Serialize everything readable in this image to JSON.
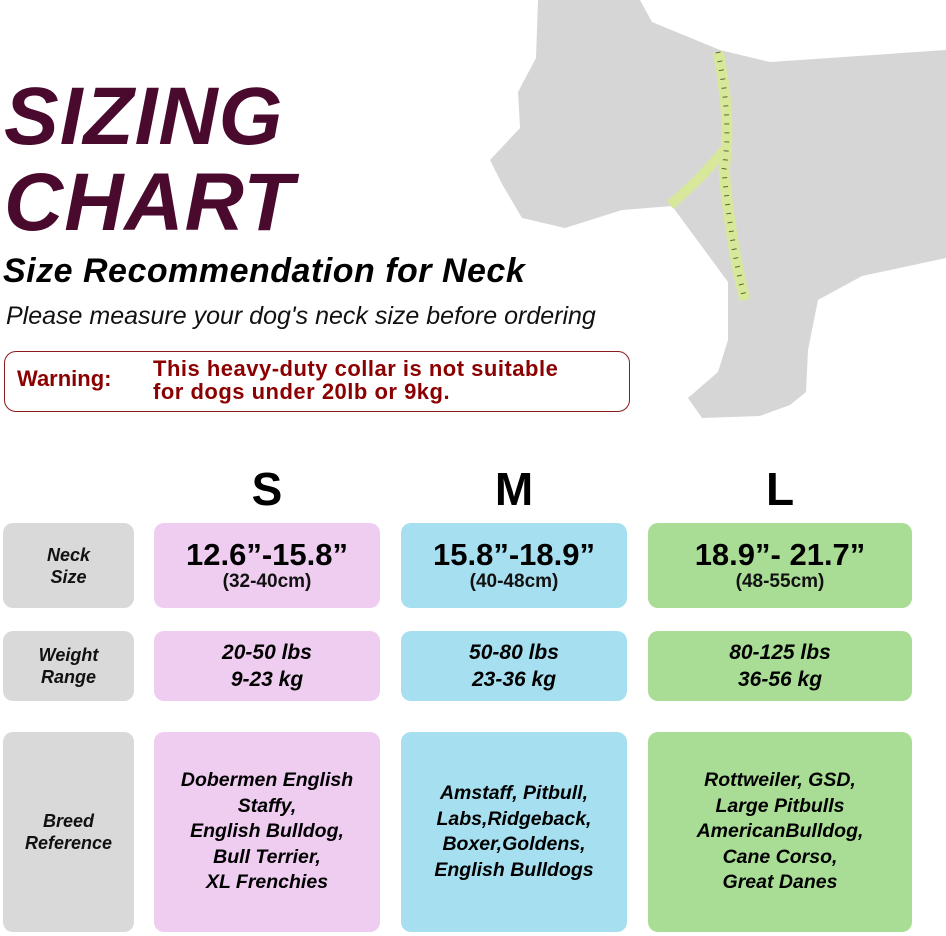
{
  "header": {
    "title_line1": "SIZING",
    "title_line2": "CHART",
    "subtitle": "Size Recommendation for Neck",
    "instruction": "Please measure your dog's neck size before ordering"
  },
  "warning": {
    "label": "Warning:",
    "text_line1": "This heavy-duty collar is not suitable",
    "text_line2": "for dogs under 20lb or 9kg."
  },
  "colors": {
    "title": "#4a0a2e",
    "warning": "#8b0000",
    "label_bg": "#d9d9d9",
    "small": "#efcdf0",
    "medium": "#a6dff0",
    "large": "#a9dd95",
    "dog": "#d6d6d6",
    "tape": "#d8e89a"
  },
  "row_labels": {
    "neck": [
      "Neck",
      "Size"
    ],
    "weight": [
      "Weight",
      "Range"
    ],
    "breed": [
      "Breed",
      "Reference"
    ]
  },
  "sizes": [
    {
      "name": "S",
      "neck_in": "12.6”-15.8”",
      "neck_cm": "(32-40cm)",
      "weight_lbs": "20-50 lbs",
      "weight_kg": "9-23 kg",
      "breeds": [
        "Dobermen English",
        "Staffy,",
        "English Bulldog,",
        "Bull Terrier,",
        "XL Frenchies"
      ]
    },
    {
      "name": "M",
      "neck_in": "15.8”-18.9”",
      "neck_cm": "(40-48cm)",
      "weight_lbs": "50-80 lbs",
      "weight_kg": "23-36 kg",
      "breeds": [
        "Amstaff, Pitbull,",
        "Labs,Ridgeback,",
        "Boxer,Goldens,",
        "English Bulldogs"
      ]
    },
    {
      "name": "L",
      "neck_in": "18.9”- 21.7”",
      "neck_cm": "(48-55cm)",
      "weight_lbs": "80-125 lbs",
      "weight_kg": "36-56 kg",
      "breeds": [
        "Rottweiler, GSD,",
        "Large Pitbulls",
        "AmericanBulldog,",
        "Cane Corso,",
        "Great Danes"
      ]
    }
  ]
}
